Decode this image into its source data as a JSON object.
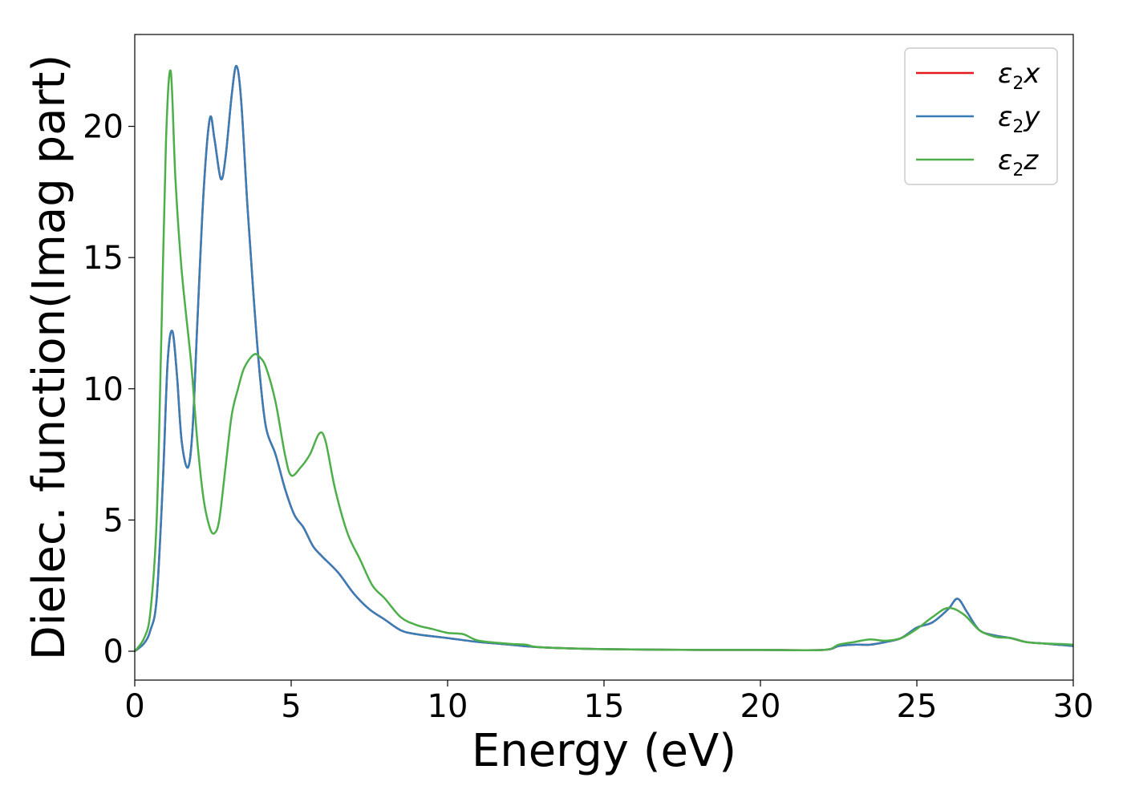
{
  "chart_data": {
    "type": "line",
    "xlabel": "Energy (eV)",
    "ylabel": "Dielec. function(Imag part)",
    "xlim": [
      0,
      30
    ],
    "ylim": [
      -1.1,
      23.5
    ],
    "xticks": [
      0,
      5,
      10,
      15,
      20,
      25,
      30
    ],
    "yticks": [
      0,
      5,
      10,
      15,
      20
    ],
    "grid": false,
    "legend_position": "top-right",
    "series": [
      {
        "name": "ε2x",
        "legend_main": "ε",
        "legend_sub": "2",
        "legend_tail": "x",
        "color": "#e41a1c",
        "points": [
          [
            0,
            0
          ],
          [
            0.3,
            0.3
          ],
          [
            0.5,
            0.8
          ],
          [
            0.7,
            2.0
          ],
          [
            0.9,
            6.5
          ],
          [
            1.05,
            11.0
          ],
          [
            1.2,
            12.2
          ],
          [
            1.35,
            10.5
          ],
          [
            1.5,
            8.0
          ],
          [
            1.7,
            7.0
          ],
          [
            1.85,
            8.5
          ],
          [
            2.0,
            12.5
          ],
          [
            2.2,
            17.5
          ],
          [
            2.4,
            20.3
          ],
          [
            2.55,
            19.5
          ],
          [
            2.75,
            18.0
          ],
          [
            2.9,
            18.8
          ],
          [
            3.1,
            21.2
          ],
          [
            3.25,
            22.3
          ],
          [
            3.4,
            21.0
          ],
          [
            3.6,
            17.0
          ],
          [
            3.8,
            13.5
          ],
          [
            4.0,
            10.5
          ],
          [
            4.2,
            8.5
          ],
          [
            4.5,
            7.5
          ],
          [
            4.8,
            6.2
          ],
          [
            5.1,
            5.2
          ],
          [
            5.4,
            4.7
          ],
          [
            5.7,
            4.0
          ],
          [
            6.0,
            3.6
          ],
          [
            6.5,
            3.0
          ],
          [
            7.0,
            2.2
          ],
          [
            7.5,
            1.6
          ],
          [
            8.0,
            1.2
          ],
          [
            8.5,
            0.8
          ],
          [
            9.0,
            0.65
          ],
          [
            10.0,
            0.5
          ],
          [
            11.0,
            0.35
          ],
          [
            12.0,
            0.25
          ],
          [
            13.0,
            0.15
          ],
          [
            15.0,
            0.08
          ],
          [
            18.0,
            0.05
          ],
          [
            20.0,
            0.05
          ],
          [
            22.0,
            0.05
          ],
          [
            22.5,
            0.2
          ],
          [
            23.0,
            0.25
          ],
          [
            23.5,
            0.25
          ],
          [
            24.0,
            0.35
          ],
          [
            24.5,
            0.5
          ],
          [
            25.0,
            0.9
          ],
          [
            25.5,
            1.1
          ],
          [
            26.0,
            1.6
          ],
          [
            26.3,
            2.0
          ],
          [
            26.6,
            1.5
          ],
          [
            27.0,
            0.8
          ],
          [
            27.5,
            0.6
          ],
          [
            28.0,
            0.5
          ],
          [
            28.5,
            0.35
          ],
          [
            29.0,
            0.3
          ],
          [
            29.5,
            0.25
          ],
          [
            30.0,
            0.2
          ]
        ]
      },
      {
        "name": "ε2y",
        "legend_main": "ε",
        "legend_sub": "2",
        "legend_tail": "y",
        "color": "#377eb8",
        "points": [
          [
            0,
            0
          ],
          [
            0.3,
            0.3
          ],
          [
            0.5,
            0.8
          ],
          [
            0.7,
            2.0
          ],
          [
            0.9,
            6.5
          ],
          [
            1.05,
            11.0
          ],
          [
            1.2,
            12.2
          ],
          [
            1.35,
            10.5
          ],
          [
            1.5,
            8.0
          ],
          [
            1.7,
            7.0
          ],
          [
            1.85,
            8.5
          ],
          [
            2.0,
            12.5
          ],
          [
            2.2,
            17.5
          ],
          [
            2.4,
            20.3
          ],
          [
            2.55,
            19.5
          ],
          [
            2.75,
            18.0
          ],
          [
            2.9,
            18.8
          ],
          [
            3.1,
            21.2
          ],
          [
            3.25,
            22.3
          ],
          [
            3.4,
            21.0
          ],
          [
            3.6,
            17.0
          ],
          [
            3.8,
            13.5
          ],
          [
            4.0,
            10.5
          ],
          [
            4.2,
            8.5
          ],
          [
            4.5,
            7.5
          ],
          [
            4.8,
            6.2
          ],
          [
            5.1,
            5.2
          ],
          [
            5.4,
            4.7
          ],
          [
            5.7,
            4.0
          ],
          [
            6.0,
            3.6
          ],
          [
            6.5,
            3.0
          ],
          [
            7.0,
            2.2
          ],
          [
            7.5,
            1.6
          ],
          [
            8.0,
            1.2
          ],
          [
            8.5,
            0.8
          ],
          [
            9.0,
            0.65
          ],
          [
            10.0,
            0.5
          ],
          [
            11.0,
            0.35
          ],
          [
            12.0,
            0.25
          ],
          [
            13.0,
            0.15
          ],
          [
            15.0,
            0.08
          ],
          [
            18.0,
            0.05
          ],
          [
            20.0,
            0.05
          ],
          [
            22.0,
            0.05
          ],
          [
            22.5,
            0.2
          ],
          [
            23.0,
            0.25
          ],
          [
            23.5,
            0.25
          ],
          [
            24.0,
            0.35
          ],
          [
            24.5,
            0.5
          ],
          [
            25.0,
            0.9
          ],
          [
            25.5,
            1.1
          ],
          [
            26.0,
            1.6
          ],
          [
            26.3,
            2.0
          ],
          [
            26.6,
            1.5
          ],
          [
            27.0,
            0.8
          ],
          [
            27.5,
            0.6
          ],
          [
            28.0,
            0.5
          ],
          [
            28.5,
            0.35
          ],
          [
            29.0,
            0.3
          ],
          [
            29.5,
            0.25
          ],
          [
            30.0,
            0.2
          ]
        ]
      },
      {
        "name": "ε2z",
        "legend_main": "ε",
        "legend_sub": "2",
        "legend_tail": "z",
        "color": "#4daf4a",
        "points": [
          [
            0,
            0
          ],
          [
            0.3,
            0.5
          ],
          [
            0.5,
            1.5
          ],
          [
            0.7,
            5.0
          ],
          [
            0.85,
            12.0
          ],
          [
            1.0,
            19.5
          ],
          [
            1.15,
            22.1
          ],
          [
            1.3,
            18.0
          ],
          [
            1.5,
            14.5
          ],
          [
            1.8,
            11.0
          ],
          [
            2.0,
            8.0
          ],
          [
            2.2,
            5.8
          ],
          [
            2.4,
            4.7
          ],
          [
            2.55,
            4.5
          ],
          [
            2.7,
            5.0
          ],
          [
            2.9,
            7.0
          ],
          [
            3.1,
            9.0
          ],
          [
            3.3,
            10.0
          ],
          [
            3.5,
            10.8
          ],
          [
            3.8,
            11.3
          ],
          [
            4.0,
            11.2
          ],
          [
            4.2,
            10.8
          ],
          [
            4.5,
            9.5
          ],
          [
            4.8,
            7.5
          ],
          [
            5.0,
            6.7
          ],
          [
            5.3,
            7.0
          ],
          [
            5.6,
            7.5
          ],
          [
            5.9,
            8.3
          ],
          [
            6.1,
            8.0
          ],
          [
            6.4,
            6.2
          ],
          [
            6.8,
            4.5
          ],
          [
            7.2,
            3.5
          ],
          [
            7.6,
            2.5
          ],
          [
            8.0,
            2.0
          ],
          [
            8.5,
            1.3
          ],
          [
            9.0,
            1.0
          ],
          [
            9.5,
            0.85
          ],
          [
            10.0,
            0.7
          ],
          [
            10.5,
            0.65
          ],
          [
            11.0,
            0.4
          ],
          [
            12.0,
            0.28
          ],
          [
            12.5,
            0.25
          ],
          [
            13.0,
            0.15
          ],
          [
            15.0,
            0.08
          ],
          [
            18.0,
            0.05
          ],
          [
            20.0,
            0.05
          ],
          [
            22.0,
            0.05
          ],
          [
            22.5,
            0.25
          ],
          [
            23.0,
            0.35
          ],
          [
            23.5,
            0.45
          ],
          [
            24.0,
            0.4
          ],
          [
            24.5,
            0.5
          ],
          [
            25.0,
            0.85
          ],
          [
            25.5,
            1.3
          ],
          [
            26.0,
            1.65
          ],
          [
            26.5,
            1.4
          ],
          [
            27.0,
            0.8
          ],
          [
            27.5,
            0.55
          ],
          [
            28.0,
            0.5
          ],
          [
            28.5,
            0.35
          ],
          [
            29.0,
            0.3
          ],
          [
            29.5,
            0.28
          ],
          [
            30.0,
            0.25
          ]
        ]
      }
    ]
  }
}
